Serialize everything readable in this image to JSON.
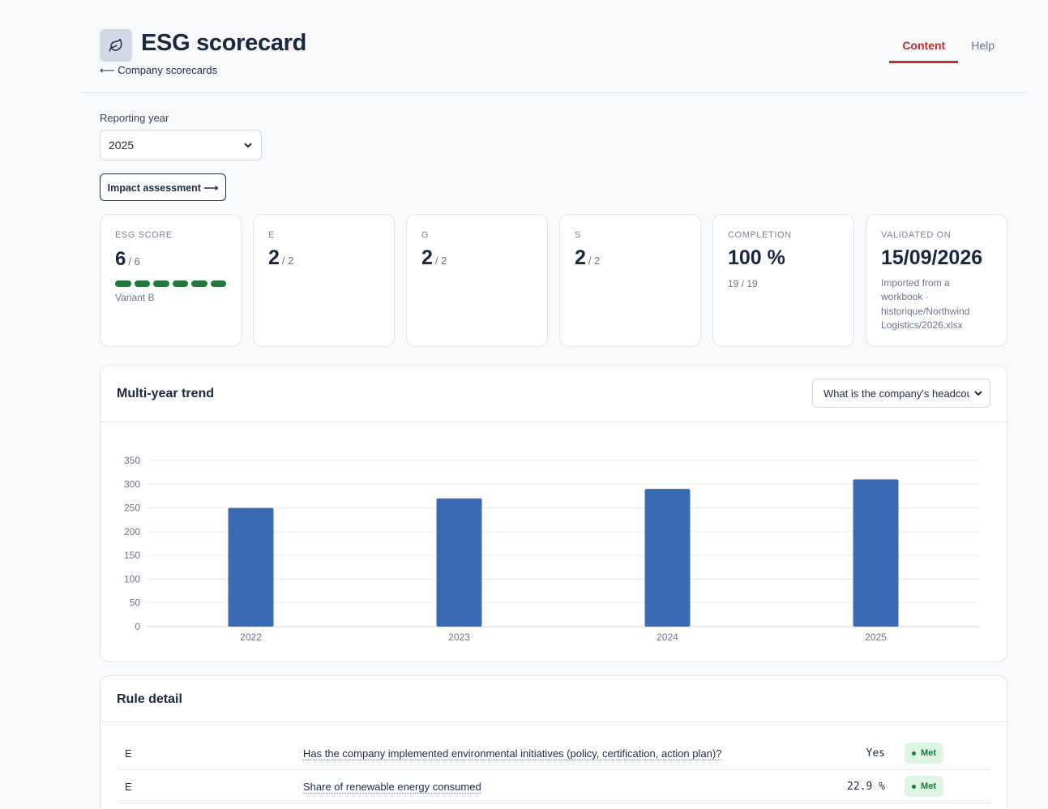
{
  "header": {
    "title": "ESG scorecard",
    "back_link": "⟵ Company scorecards",
    "tabs": [
      {
        "label": "Content",
        "active": true
      },
      {
        "label": "Help",
        "active": false
      }
    ]
  },
  "filters": {
    "year_label": "Reporting year",
    "year_value": "2025",
    "impact_button": "Impact assessment ⟶"
  },
  "cards": {
    "esg": {
      "label": "ESG score",
      "value": "6",
      "of": "/ 6",
      "segments_filled": 6,
      "segments_total": 6,
      "variant": "Variant B"
    },
    "e": {
      "label": "E",
      "value": "2",
      "of": "/ 2"
    },
    "g": {
      "label": "G",
      "value": "2",
      "of": "/ 2"
    },
    "s": {
      "label": "S",
      "value": "2",
      "of": "/ 2"
    },
    "completion": {
      "label": "Completion",
      "value": "100 %",
      "sub": "19 / 19"
    },
    "validated": {
      "label": "Validated on",
      "value": "15/09/2026",
      "sub_lines": [
        "Imported from a",
        "workbook ·",
        "historique/Northwind",
        "Logistics/2026.xlsx"
      ]
    }
  },
  "trend": {
    "title": "Multi-year trend",
    "metric_select": "What is the company's headcount"
  },
  "chart_data": {
    "type": "bar",
    "categories": [
      "2022",
      "2023",
      "2024",
      "2025"
    ],
    "values": [
      250,
      270,
      290,
      310
    ],
    "yticks": [
      0,
      50,
      100,
      150,
      200,
      250,
      300,
      350
    ],
    "ylim": [
      0,
      350
    ],
    "color": "#3b6ab5",
    "grid": true,
    "title": "",
    "xlabel": "",
    "ylabel": ""
  },
  "rules": {
    "title": "Rule detail",
    "rows": [
      {
        "pillar": "E",
        "question": "Has the company implemented environmental initiatives (policy, certification, action plan)?",
        "value": "Yes",
        "status": "Met"
      },
      {
        "pillar": "E",
        "question": "Share of renewable energy consumed",
        "value": "22.9 %",
        "status": "Met"
      }
    ]
  },
  "colors": {
    "accent": "#c22d2d",
    "success": "#1e7b3a",
    "bar": "#3b6ab5"
  }
}
